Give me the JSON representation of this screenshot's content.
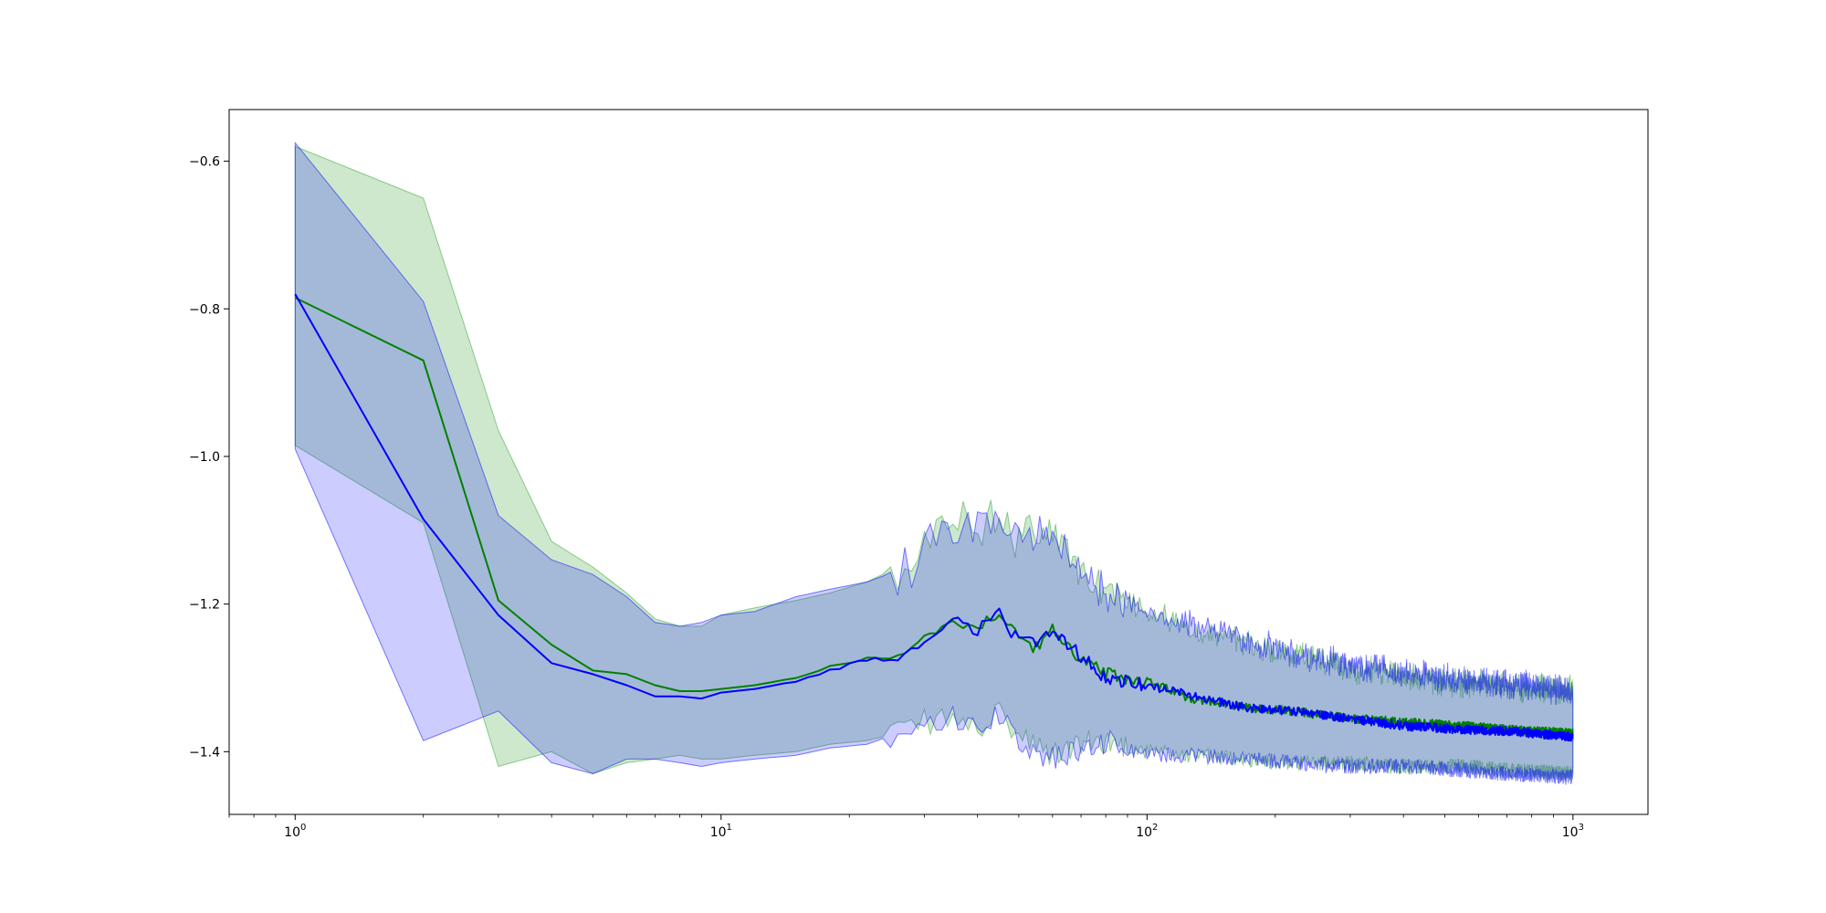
{
  "chart_data": {
    "type": "line",
    "title": "",
    "xlabel": "",
    "ylabel": "",
    "xscale": "log",
    "xlim": [
      0.7,
      1500
    ],
    "ylim": [
      -1.485,
      -0.53
    ],
    "grid": false,
    "legend": "none",
    "x_ticks": [
      {
        "base": "10",
        "exp": "0",
        "value": 1
      },
      {
        "base": "10",
        "exp": "1",
        "value": 10
      },
      {
        "base": "10",
        "exp": "2",
        "value": 100
      },
      {
        "base": "10",
        "exp": "3",
        "value": 1000
      }
    ],
    "y_ticks": [
      {
        "label": "−0.6",
        "value": -0.6
      },
      {
        "label": "−0.8",
        "value": -0.8
      },
      {
        "label": "−1.0",
        "value": -1.0
      },
      {
        "label": "−1.2",
        "value": -1.2
      },
      {
        "label": "−1.4",
        "value": -1.4
      }
    ],
    "series": [
      {
        "color": "#008000",
        "band_color": "#2ca02c",
        "band_opacity": 0.24,
        "x": [
          1,
          2,
          3,
          4,
          5,
          6,
          7,
          8,
          9,
          10,
          12,
          15,
          18,
          22,
          26,
          30,
          35,
          40,
          45,
          50,
          55,
          60,
          70,
          80,
          100,
          130,
          170,
          220,
          300,
          400,
          550,
          700,
          1000
        ],
        "mean": [
          -0.785,
          -0.87,
          -1.195,
          -1.255,
          -1.29,
          -1.295,
          -1.31,
          -1.318,
          -1.318,
          -1.315,
          -1.31,
          -1.3,
          -1.285,
          -1.275,
          -1.27,
          -1.245,
          -1.225,
          -1.23,
          -1.21,
          -1.245,
          -1.26,
          -1.235,
          -1.275,
          -1.295,
          -1.305,
          -1.33,
          -1.34,
          -1.345,
          -1.355,
          -1.36,
          -1.365,
          -1.37,
          -1.375
        ],
        "upper": [
          -0.58,
          -0.65,
          -0.965,
          -1.115,
          -1.15,
          -1.185,
          -1.22,
          -1.23,
          -1.23,
          -1.215,
          -1.205,
          -1.195,
          -1.185,
          -1.17,
          -1.15,
          -1.1,
          -1.08,
          -1.085,
          -1.075,
          -1.1,
          -1.09,
          -1.08,
          -1.145,
          -1.17,
          -1.2,
          -1.23,
          -1.245,
          -1.26,
          -1.28,
          -1.29,
          -1.3,
          -1.305,
          -1.31
        ],
        "lower": [
          -0.985,
          -1.09,
          -1.42,
          -1.4,
          -1.43,
          -1.415,
          -1.41,
          -1.405,
          -1.41,
          -1.41,
          -1.405,
          -1.4,
          -1.39,
          -1.385,
          -1.375,
          -1.36,
          -1.355,
          -1.37,
          -1.35,
          -1.38,
          -1.395,
          -1.405,
          -1.39,
          -1.385,
          -1.4,
          -1.405,
          -1.41,
          -1.415,
          -1.415,
          -1.42,
          -1.42,
          -1.425,
          -1.43
        ]
      },
      {
        "color": "#0000ff",
        "band_color": "#0000ff",
        "band_opacity": 0.2,
        "x": [
          1,
          2,
          3,
          4,
          5,
          6,
          7,
          8,
          9,
          10,
          12,
          15,
          18,
          22,
          26,
          30,
          35,
          40,
          45,
          50,
          55,
          60,
          70,
          80,
          100,
          130,
          170,
          220,
          300,
          400,
          550,
          700,
          1000
        ],
        "mean": [
          -0.78,
          -1.085,
          -1.215,
          -1.28,
          -1.295,
          -1.31,
          -1.325,
          -1.325,
          -1.328,
          -1.32,
          -1.315,
          -1.305,
          -1.29,
          -1.275,
          -1.275,
          -1.25,
          -1.22,
          -1.235,
          -1.215,
          -1.25,
          -1.255,
          -1.24,
          -1.27,
          -1.3,
          -1.31,
          -1.325,
          -1.34,
          -1.345,
          -1.355,
          -1.365,
          -1.37,
          -1.372,
          -1.38
        ],
        "upper": [
          -0.575,
          -0.79,
          -1.08,
          -1.14,
          -1.16,
          -1.19,
          -1.225,
          -1.23,
          -1.225,
          -1.215,
          -1.21,
          -1.19,
          -1.18,
          -1.17,
          -1.155,
          -1.11,
          -1.085,
          -1.09,
          -1.08,
          -1.095,
          -1.09,
          -1.085,
          -1.15,
          -1.175,
          -1.2,
          -1.225,
          -1.24,
          -1.26,
          -1.275,
          -1.285,
          -1.295,
          -1.3,
          -1.31
        ],
        "lower": [
          -0.99,
          -1.385,
          -1.345,
          -1.415,
          -1.43,
          -1.41,
          -1.41,
          -1.415,
          -1.42,
          -1.415,
          -1.41,
          -1.405,
          -1.395,
          -1.39,
          -1.375,
          -1.36,
          -1.355,
          -1.365,
          -1.35,
          -1.385,
          -1.4,
          -1.41,
          -1.395,
          -1.385,
          -1.405,
          -1.405,
          -1.41,
          -1.415,
          -1.42,
          -1.42,
          -1.425,
          -1.43,
          -1.435
        ]
      }
    ]
  }
}
